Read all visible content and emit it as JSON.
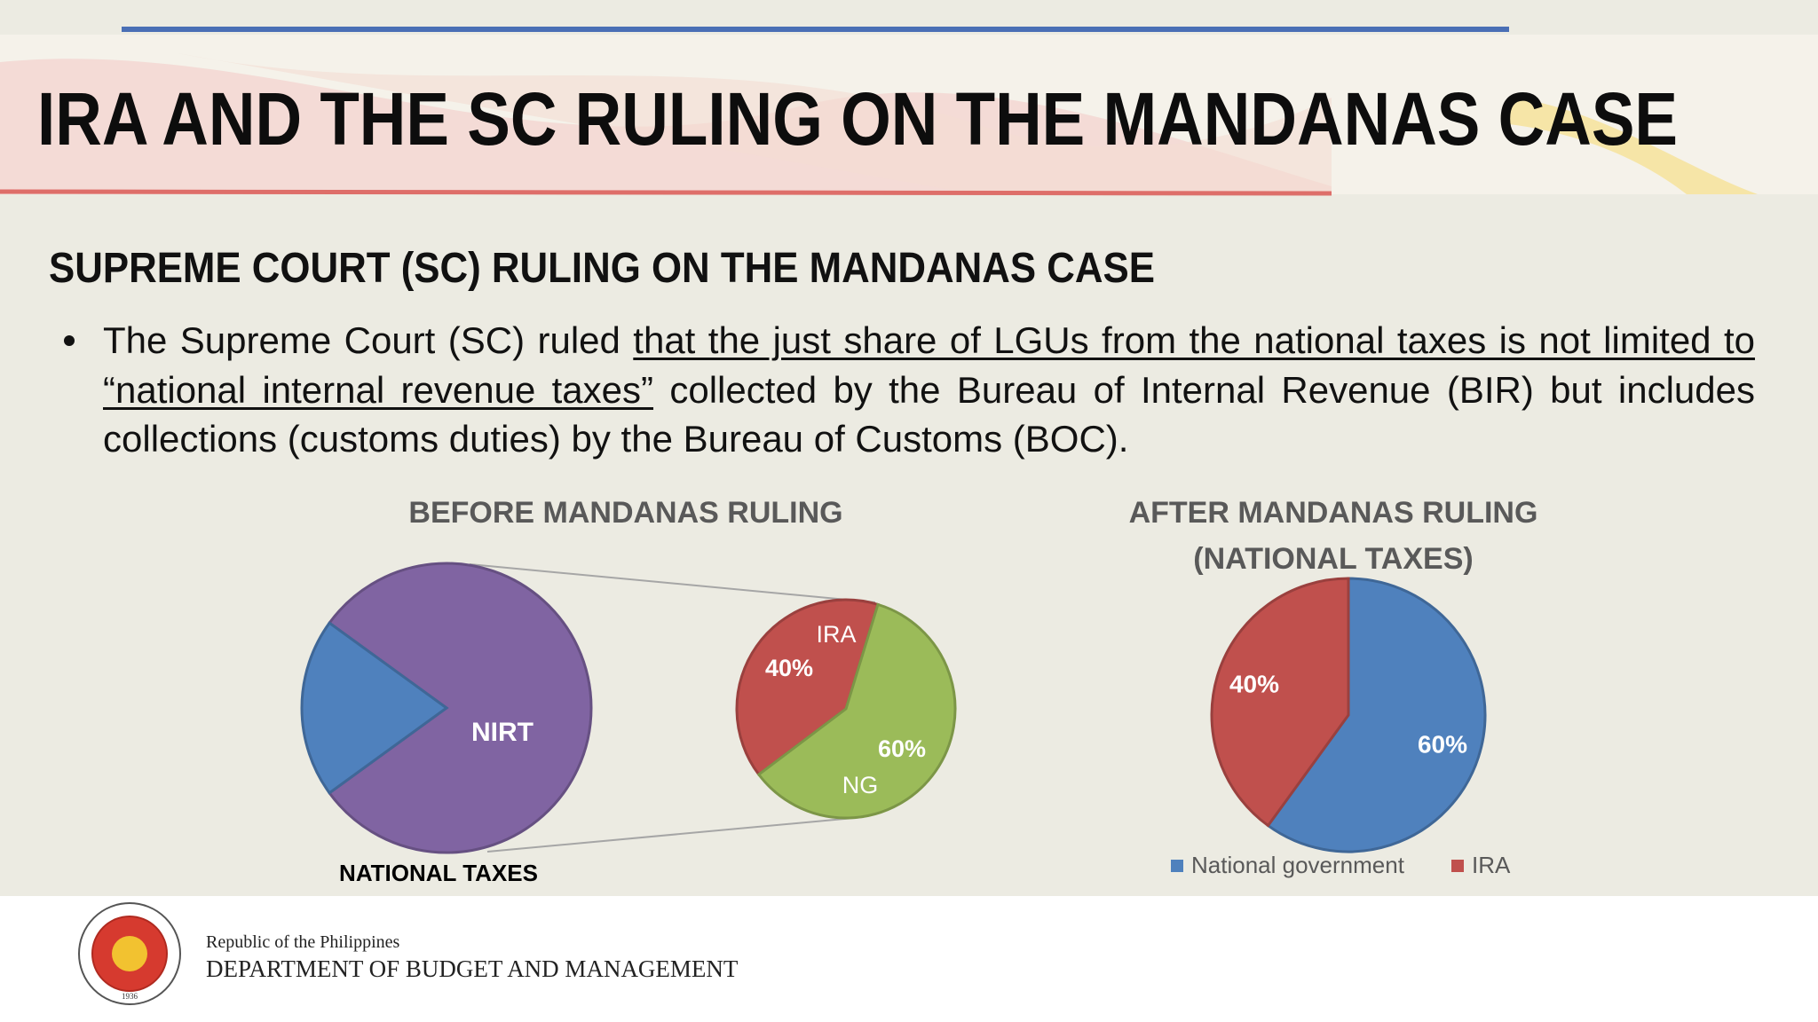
{
  "header": {
    "title": "IRA AND THE SC RULING ON THE MANDANAS CASE"
  },
  "body": {
    "heading": "SUPREME COURT (SC) RULING ON THE MANDANAS CASE",
    "bullet": {
      "text_before": "The Supreme Court (SC) ruled ",
      "underlined": "that the just share of LGUs from the national taxes is not limited to “national internal revenue taxes”",
      "text_after": " collected by the Bureau of Internal Revenue (BIR) but includes collections (customs duties) by the Bureau of Customs (BOC)."
    }
  },
  "chart_data": [
    {
      "type": "pie-of-pie",
      "title": "BEFORE MANDANAS RULING",
      "xlabel": "NATIONAL TAXES",
      "categories": [
        "NIRT",
        null
      ],
      "values": [
        80,
        20
      ],
      "colors": [
        "#8064a2",
        "#4f81bd"
      ],
      "breakout": {
        "categories": [
          "IRA",
          "NG"
        ],
        "values": [
          40,
          60
        ],
        "value_labels": [
          "40%",
          "60%"
        ],
        "colors": [
          "#c0504d",
          "#9bbb59"
        ]
      }
    },
    {
      "type": "pie",
      "title": "AFTER MANDANAS RULING",
      "subtitle": "(NATIONAL TAXES)",
      "categories": [
        "National government",
        "IRA"
      ],
      "values": [
        60,
        40
      ],
      "value_labels": [
        "60%",
        "40%"
      ],
      "colors": [
        "#4f81bd",
        "#c0504d"
      ],
      "legend": "bottom"
    }
  ],
  "footer": {
    "line1": "Republic of the Philippines",
    "line2": "DEPARTMENT OF BUDGET AND MANAGEMENT",
    "seal_year": "1936"
  }
}
